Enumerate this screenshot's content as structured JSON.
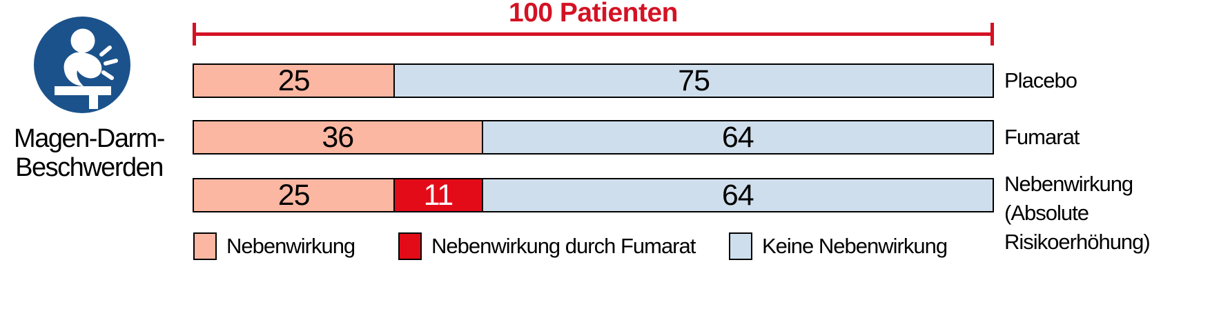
{
  "category": {
    "icon": "stomach-pain-person-icon",
    "label": "Magen-Darm-Beschwerden",
    "label_lines": [
      "Magen-Darm-",
      "Beschwerden"
    ]
  },
  "title": "100 Patienten",
  "colors": {
    "accent_red": "#d41224",
    "segment_red": "#e30b17",
    "salmon": "#fbb7a2",
    "light_blue": "#cfdeec",
    "icon_blue": "#1b528b",
    "border_black": "#000000"
  },
  "chart_data": {
    "type": "bar",
    "orientation": "horizontal",
    "stacked": true,
    "total": 100,
    "title": "100 Patienten",
    "category_label": "Magen-Darm-Beschwerden",
    "legend_position": "bottom",
    "rows": [
      {
        "label": "Placebo",
        "label_lines": [
          "Placebo"
        ],
        "segments": [
          {
            "name": "Nebenwirkung",
            "value": 25
          },
          {
            "name": "Keine Nebenwirkung",
            "value": 75
          }
        ]
      },
      {
        "label": "Fumarat",
        "label_lines": [
          "Fumarat"
        ],
        "segments": [
          {
            "name": "Nebenwirkung",
            "value": 36
          },
          {
            "name": "Keine Nebenwirkung",
            "value": 64
          }
        ]
      },
      {
        "label": "Nebenwirkung (Absolute Risikoerhöhung)",
        "label_lines": [
          "Nebenwirkung",
          "(Absolute",
          "Risikoerhöhung)"
        ],
        "segments": [
          {
            "name": "Nebenwirkung",
            "value": 25
          },
          {
            "name": "Nebenwirkung durch Fumarat",
            "value": 11
          },
          {
            "name": "Keine Nebenwirkung",
            "value": 64
          }
        ]
      }
    ],
    "legend": [
      {
        "label": "Nebenwirkung",
        "color": "#fbb7a2"
      },
      {
        "label": "Nebenwirkung durch Fumarat",
        "color": "#e30b17"
      },
      {
        "label": "Keine Nebenwirkung",
        "color": "#cfdeec"
      }
    ]
  }
}
